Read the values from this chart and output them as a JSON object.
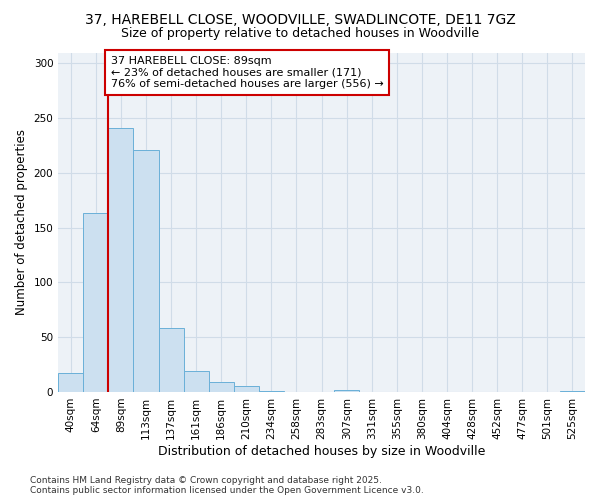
{
  "title": "37, HAREBELL CLOSE, WOODVILLE, SWADLINCOTE, DE11 7GZ",
  "subtitle": "Size of property relative to detached houses in Woodville",
  "xlabel": "Distribution of detached houses by size in Woodville",
  "ylabel": "Number of detached properties",
  "categories": [
    "40sqm",
    "64sqm",
    "89sqm",
    "113sqm",
    "137sqm",
    "161sqm",
    "186sqm",
    "210sqm",
    "234sqm",
    "258sqm",
    "283sqm",
    "307sqm",
    "331sqm",
    "355sqm",
    "380sqm",
    "404sqm",
    "428sqm",
    "452sqm",
    "477sqm",
    "501sqm",
    "525sqm"
  ],
  "values": [
    17,
    163,
    241,
    221,
    58,
    19,
    9,
    5,
    1,
    0,
    0,
    2,
    0,
    0,
    0,
    0,
    0,
    0,
    0,
    0,
    1
  ],
  "highlight_index": 2,
  "bar_color": "#cce0f0",
  "bar_edgecolor": "#6ab0d8",
  "highlight_color": "#cc0000",
  "annotation_text": "37 HAREBELL CLOSE: 89sqm\n← 23% of detached houses are smaller (171)\n76% of semi-detached houses are larger (556) →",
  "annotation_box_color": "#ffffff",
  "annotation_box_edgecolor": "#cc0000",
  "footer_line1": "Contains HM Land Registry data © Crown copyright and database right 2025.",
  "footer_line2": "Contains public sector information licensed under the Open Government Licence v3.0.",
  "ylim": [
    0,
    310
  ],
  "yticks": [
    0,
    50,
    100,
    150,
    200,
    250,
    300
  ],
  "grid_color": "#d0dce8",
  "bg_color": "#edf2f7",
  "title_fontsize": 10,
  "subtitle_fontsize": 9,
  "xlabel_fontsize": 9,
  "ylabel_fontsize": 8.5,
  "tick_fontsize": 7.5,
  "annotation_fontsize": 8,
  "footer_fontsize": 6.5
}
